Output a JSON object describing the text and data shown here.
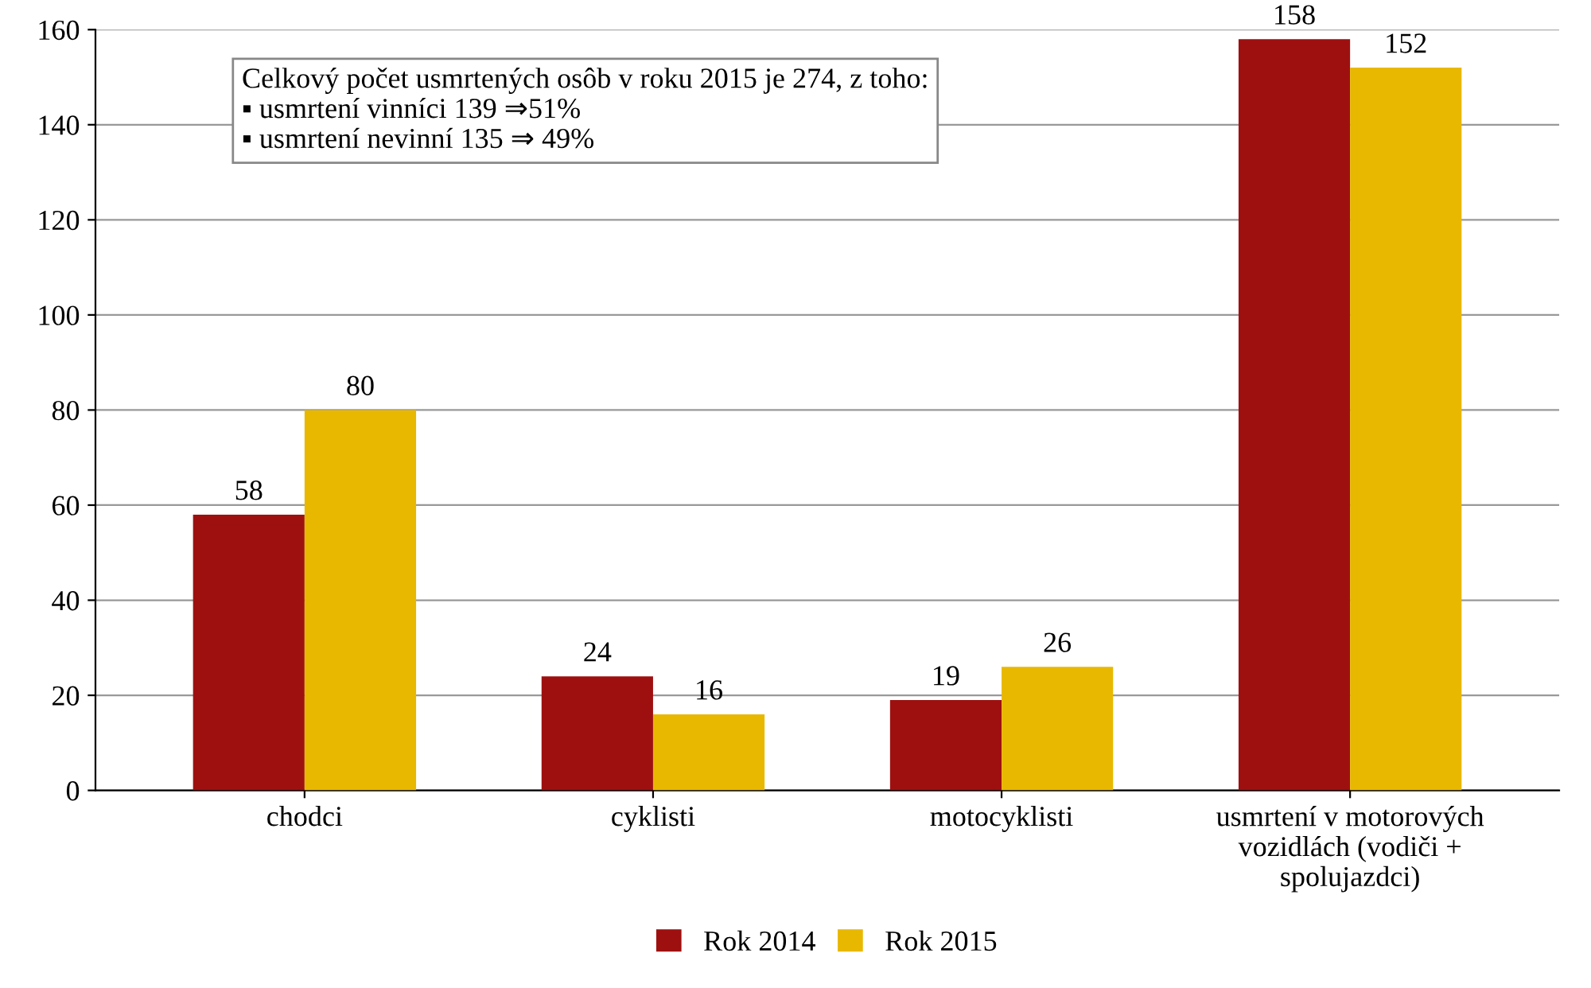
{
  "chart_data": {
    "type": "bar",
    "categories": [
      "chodci",
      "cyklisti",
      "motocyklisti",
      "usmrtení v motorových\nvozidlách (vodiči +\nspolujazdci)"
    ],
    "series": [
      {
        "name": "Rok 2014",
        "color": "#9e1010",
        "values": [
          58,
          24,
          19,
          158
        ]
      },
      {
        "name": "Rok 2015",
        "color": "#e8b800",
        "values": [
          80,
          16,
          26,
          152
        ]
      }
    ],
    "ylim": [
      0,
      160
    ],
    "yticks": [
      0,
      20,
      40,
      60,
      80,
      100,
      120,
      140,
      160
    ],
    "grid": "y",
    "legend": "bottom",
    "data_labels": true,
    "annotations": [
      "Celkový počet usmrtených osôb v roku 2015 je 274, z toho:",
      "▪ usmrtení vinníci 139 ⇒51%",
      "▪ usmrtení nevinní 135 ⇒ 49%"
    ]
  }
}
